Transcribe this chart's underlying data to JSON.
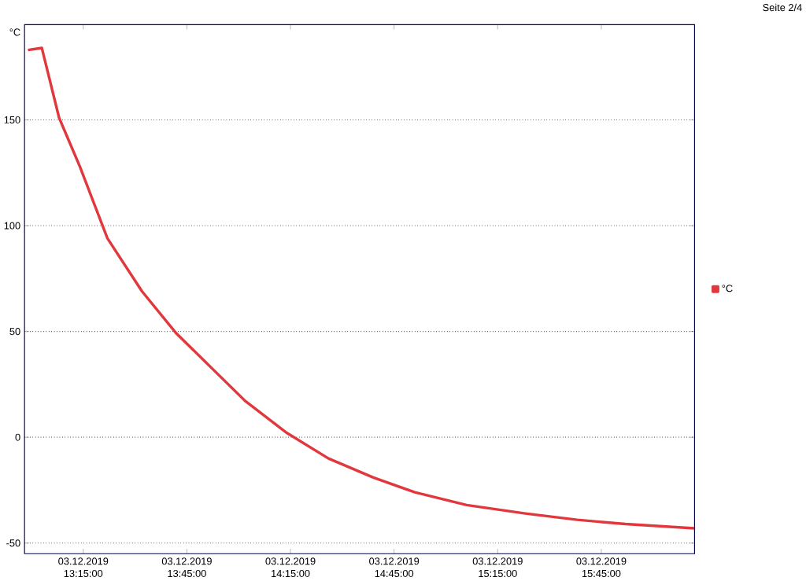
{
  "chart_data": {
    "type": "line",
    "ylabel": "°C",
    "x": [
      "2019-12-03T12:59",
      "2019-12-03T13:03",
      "2019-12-03T13:08",
      "2019-12-03T13:14",
      "2019-12-03T13:22",
      "2019-12-03T13:32",
      "2019-12-03T13:42",
      "2019-12-03T13:52",
      "2019-12-03T14:02",
      "2019-12-03T14:14",
      "2019-12-03T14:26",
      "2019-12-03T14:39",
      "2019-12-03T14:51",
      "2019-12-03T15:06",
      "2019-12-03T15:23",
      "2019-12-03T15:38",
      "2019-12-03T15:52",
      "2019-12-03T16:12"
    ],
    "series": [
      {
        "name": "°C",
        "color": "#e0383d",
        "values": [
          183,
          184,
          151,
          128,
          94,
          69,
          49,
          33,
          17,
          2,
          -10,
          -19,
          -26,
          -32,
          -36,
          -39,
          -41,
          -43
        ]
      }
    ],
    "xlim": [
      "2019-12-03T12:58",
      "2019-12-03T16:12"
    ],
    "ylim": [
      -55,
      195
    ],
    "xticks": [
      {
        "value": "2019-12-03T13:15",
        "label": "03.12.2019 13:15:00"
      },
      {
        "value": "2019-12-03T13:45",
        "label": "03.12.2019 13:45:00"
      },
      {
        "value": "2019-12-03T14:15",
        "label": "03.12.2019 14:15:00"
      },
      {
        "value": "2019-12-03T14:45",
        "label": "03.12.2019 14:45:00"
      },
      {
        "value": "2019-12-03T15:15",
        "label": "03.12.2019 15:15:00"
      },
      {
        "value": "2019-12-03T15:45",
        "label": "03.12.2019 15:45:00"
      }
    ],
    "yticks": [
      -50,
      0,
      50,
      100,
      150
    ],
    "grid": "y",
    "legend": "right",
    "marker": "none",
    "line_style": "solid",
    "annotations": [
      "Seite 2/4"
    ]
  }
}
